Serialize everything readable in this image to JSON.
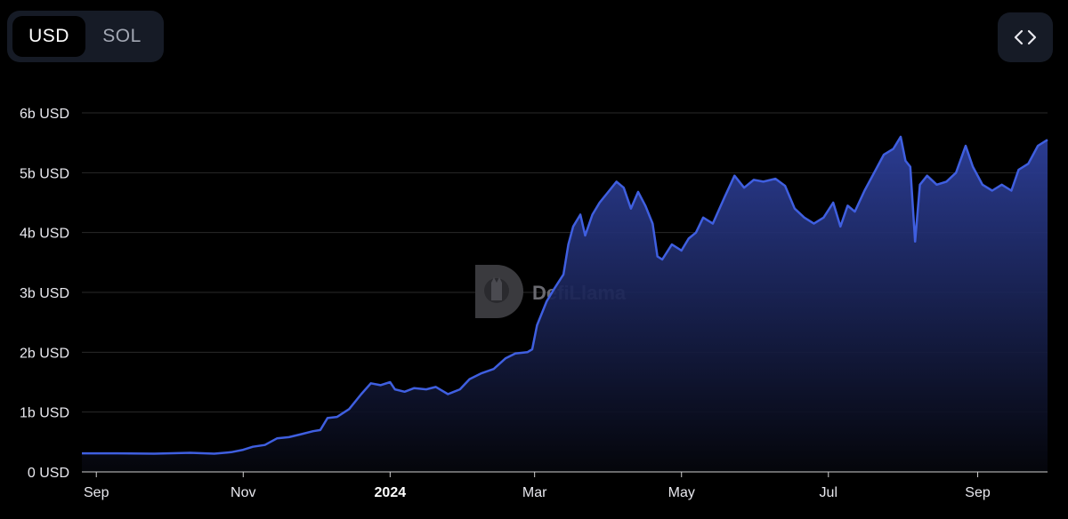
{
  "currency_toggle": {
    "options": [
      {
        "label": "USD",
        "active": true
      },
      {
        "label": "SOL",
        "active": false
      }
    ]
  },
  "embed_button": {
    "icon": "code-brackets-icon"
  },
  "watermark": {
    "text": "DefiLlama",
    "icon": "llama-logo-icon"
  },
  "colors": {
    "line": "#3f5fe0",
    "area_top": "#2d3f9a",
    "area_bottom": "#05060c",
    "grid": "#2a2a2a"
  },
  "chart_data": {
    "type": "area",
    "title": "",
    "xlabel": "",
    "ylabel": "",
    "unit": "USD",
    "ylim": [
      0,
      6000000000
    ],
    "grid": "horizontal",
    "y_ticks": [
      {
        "value": 0,
        "label": "0 USD"
      },
      {
        "value": 1000000000,
        "label": "1b USD"
      },
      {
        "value": 2000000000,
        "label": "2b USD"
      },
      {
        "value": 3000000000,
        "label": "3b USD"
      },
      {
        "value": 4000000000,
        "label": "4b USD"
      },
      {
        "value": 5000000000,
        "label": "5b USD"
      },
      {
        "value": 6000000000,
        "label": "6b USD"
      }
    ],
    "x_ticks": [
      {
        "date": "2023-09-01",
        "label": "Sep",
        "bold": false
      },
      {
        "date": "2023-11-01",
        "label": "Nov",
        "bold": false
      },
      {
        "date": "2024-01-01",
        "label": "2024",
        "bold": true
      },
      {
        "date": "2024-03-01",
        "label": "Mar",
        "bold": false
      },
      {
        "date": "2024-05-01",
        "label": "May",
        "bold": false
      },
      {
        "date": "2024-07-01",
        "label": "Jul",
        "bold": false
      },
      {
        "date": "2024-09-01",
        "label": "Sep",
        "bold": false
      }
    ],
    "xlim": [
      "2023-08-26",
      "2024-09-30"
    ],
    "series": [
      {
        "points": [
          [
            "2023-08-26",
            310000000
          ],
          [
            "2023-09-10",
            310000000
          ],
          [
            "2023-09-25",
            305000000
          ],
          [
            "2023-10-10",
            320000000
          ],
          [
            "2023-10-20",
            305000000
          ],
          [
            "2023-10-27",
            330000000
          ],
          [
            "2023-11-01",
            370000000
          ],
          [
            "2023-11-05",
            420000000
          ],
          [
            "2023-11-10",
            450000000
          ],
          [
            "2023-11-15",
            560000000
          ],
          [
            "2023-11-20",
            580000000
          ],
          [
            "2023-11-25",
            630000000
          ],
          [
            "2023-11-30",
            680000000
          ],
          [
            "2023-12-03",
            700000000
          ],
          [
            "2023-12-06",
            900000000
          ],
          [
            "2023-12-10",
            920000000
          ],
          [
            "2023-12-15",
            1050000000
          ],
          [
            "2023-12-20",
            1300000000
          ],
          [
            "2023-12-24",
            1480000000
          ],
          [
            "2023-12-28",
            1450000000
          ],
          [
            "2024-01-01",
            1500000000
          ],
          [
            "2024-01-03",
            1380000000
          ],
          [
            "2024-01-07",
            1340000000
          ],
          [
            "2024-01-11",
            1400000000
          ],
          [
            "2024-01-16",
            1380000000
          ],
          [
            "2024-01-20",
            1420000000
          ],
          [
            "2024-01-25",
            1300000000
          ],
          [
            "2024-01-30",
            1380000000
          ],
          [
            "2024-02-03",
            1550000000
          ],
          [
            "2024-02-08",
            1650000000
          ],
          [
            "2024-02-13",
            1720000000
          ],
          [
            "2024-02-18",
            1900000000
          ],
          [
            "2024-02-22",
            1980000000
          ],
          [
            "2024-02-27",
            2000000000
          ],
          [
            "2024-02-29",
            2050000000
          ],
          [
            "2024-03-02",
            2450000000
          ],
          [
            "2024-03-06",
            2850000000
          ],
          [
            "2024-03-09",
            3050000000
          ],
          [
            "2024-03-13",
            3300000000
          ],
          [
            "2024-03-15",
            3800000000
          ],
          [
            "2024-03-17",
            4100000000
          ],
          [
            "2024-03-20",
            4300000000
          ],
          [
            "2024-03-22",
            3950000000
          ],
          [
            "2024-03-25",
            4300000000
          ],
          [
            "2024-03-28",
            4500000000
          ],
          [
            "2024-04-01",
            4700000000
          ],
          [
            "2024-04-04",
            4850000000
          ],
          [
            "2024-04-07",
            4750000000
          ],
          [
            "2024-04-10",
            4400000000
          ],
          [
            "2024-04-13",
            4680000000
          ],
          [
            "2024-04-16",
            4450000000
          ],
          [
            "2024-04-19",
            4150000000
          ],
          [
            "2024-04-21",
            3600000000
          ],
          [
            "2024-04-23",
            3550000000
          ],
          [
            "2024-04-27",
            3800000000
          ],
          [
            "2024-05-01",
            3700000000
          ],
          [
            "2024-05-04",
            3900000000
          ],
          [
            "2024-05-07",
            4000000000
          ],
          [
            "2024-05-10",
            4250000000
          ],
          [
            "2024-05-14",
            4150000000
          ],
          [
            "2024-05-19",
            4600000000
          ],
          [
            "2024-05-23",
            4950000000
          ],
          [
            "2024-05-27",
            4750000000
          ],
          [
            "2024-05-31",
            4880000000
          ],
          [
            "2024-06-04",
            4850000000
          ],
          [
            "2024-06-09",
            4900000000
          ],
          [
            "2024-06-13",
            4780000000
          ],
          [
            "2024-06-17",
            4400000000
          ],
          [
            "2024-06-21",
            4250000000
          ],
          [
            "2024-06-25",
            4150000000
          ],
          [
            "2024-06-29",
            4250000000
          ],
          [
            "2024-07-03",
            4500000000
          ],
          [
            "2024-07-06",
            4100000000
          ],
          [
            "2024-07-09",
            4450000000
          ],
          [
            "2024-07-12",
            4350000000
          ],
          [
            "2024-07-16",
            4700000000
          ],
          [
            "2024-07-20",
            5000000000
          ],
          [
            "2024-07-24",
            5300000000
          ],
          [
            "2024-07-28",
            5400000000
          ],
          [
            "2024-07-31",
            5600000000
          ],
          [
            "2024-08-02",
            5200000000
          ],
          [
            "2024-08-04",
            5100000000
          ],
          [
            "2024-08-06",
            3850000000
          ],
          [
            "2024-08-08",
            4800000000
          ],
          [
            "2024-08-11",
            4950000000
          ],
          [
            "2024-08-15",
            4800000000
          ],
          [
            "2024-08-19",
            4850000000
          ],
          [
            "2024-08-23",
            5000000000
          ],
          [
            "2024-08-27",
            5450000000
          ],
          [
            "2024-08-30",
            5100000000
          ],
          [
            "2024-09-03",
            4800000000
          ],
          [
            "2024-09-07",
            4700000000
          ],
          [
            "2024-09-11",
            4800000000
          ],
          [
            "2024-09-15",
            4700000000
          ],
          [
            "2024-09-18",
            5050000000
          ],
          [
            "2024-09-22",
            5150000000
          ],
          [
            "2024-09-26",
            5450000000
          ],
          [
            "2024-09-30",
            5550000000
          ]
        ]
      }
    ]
  }
}
